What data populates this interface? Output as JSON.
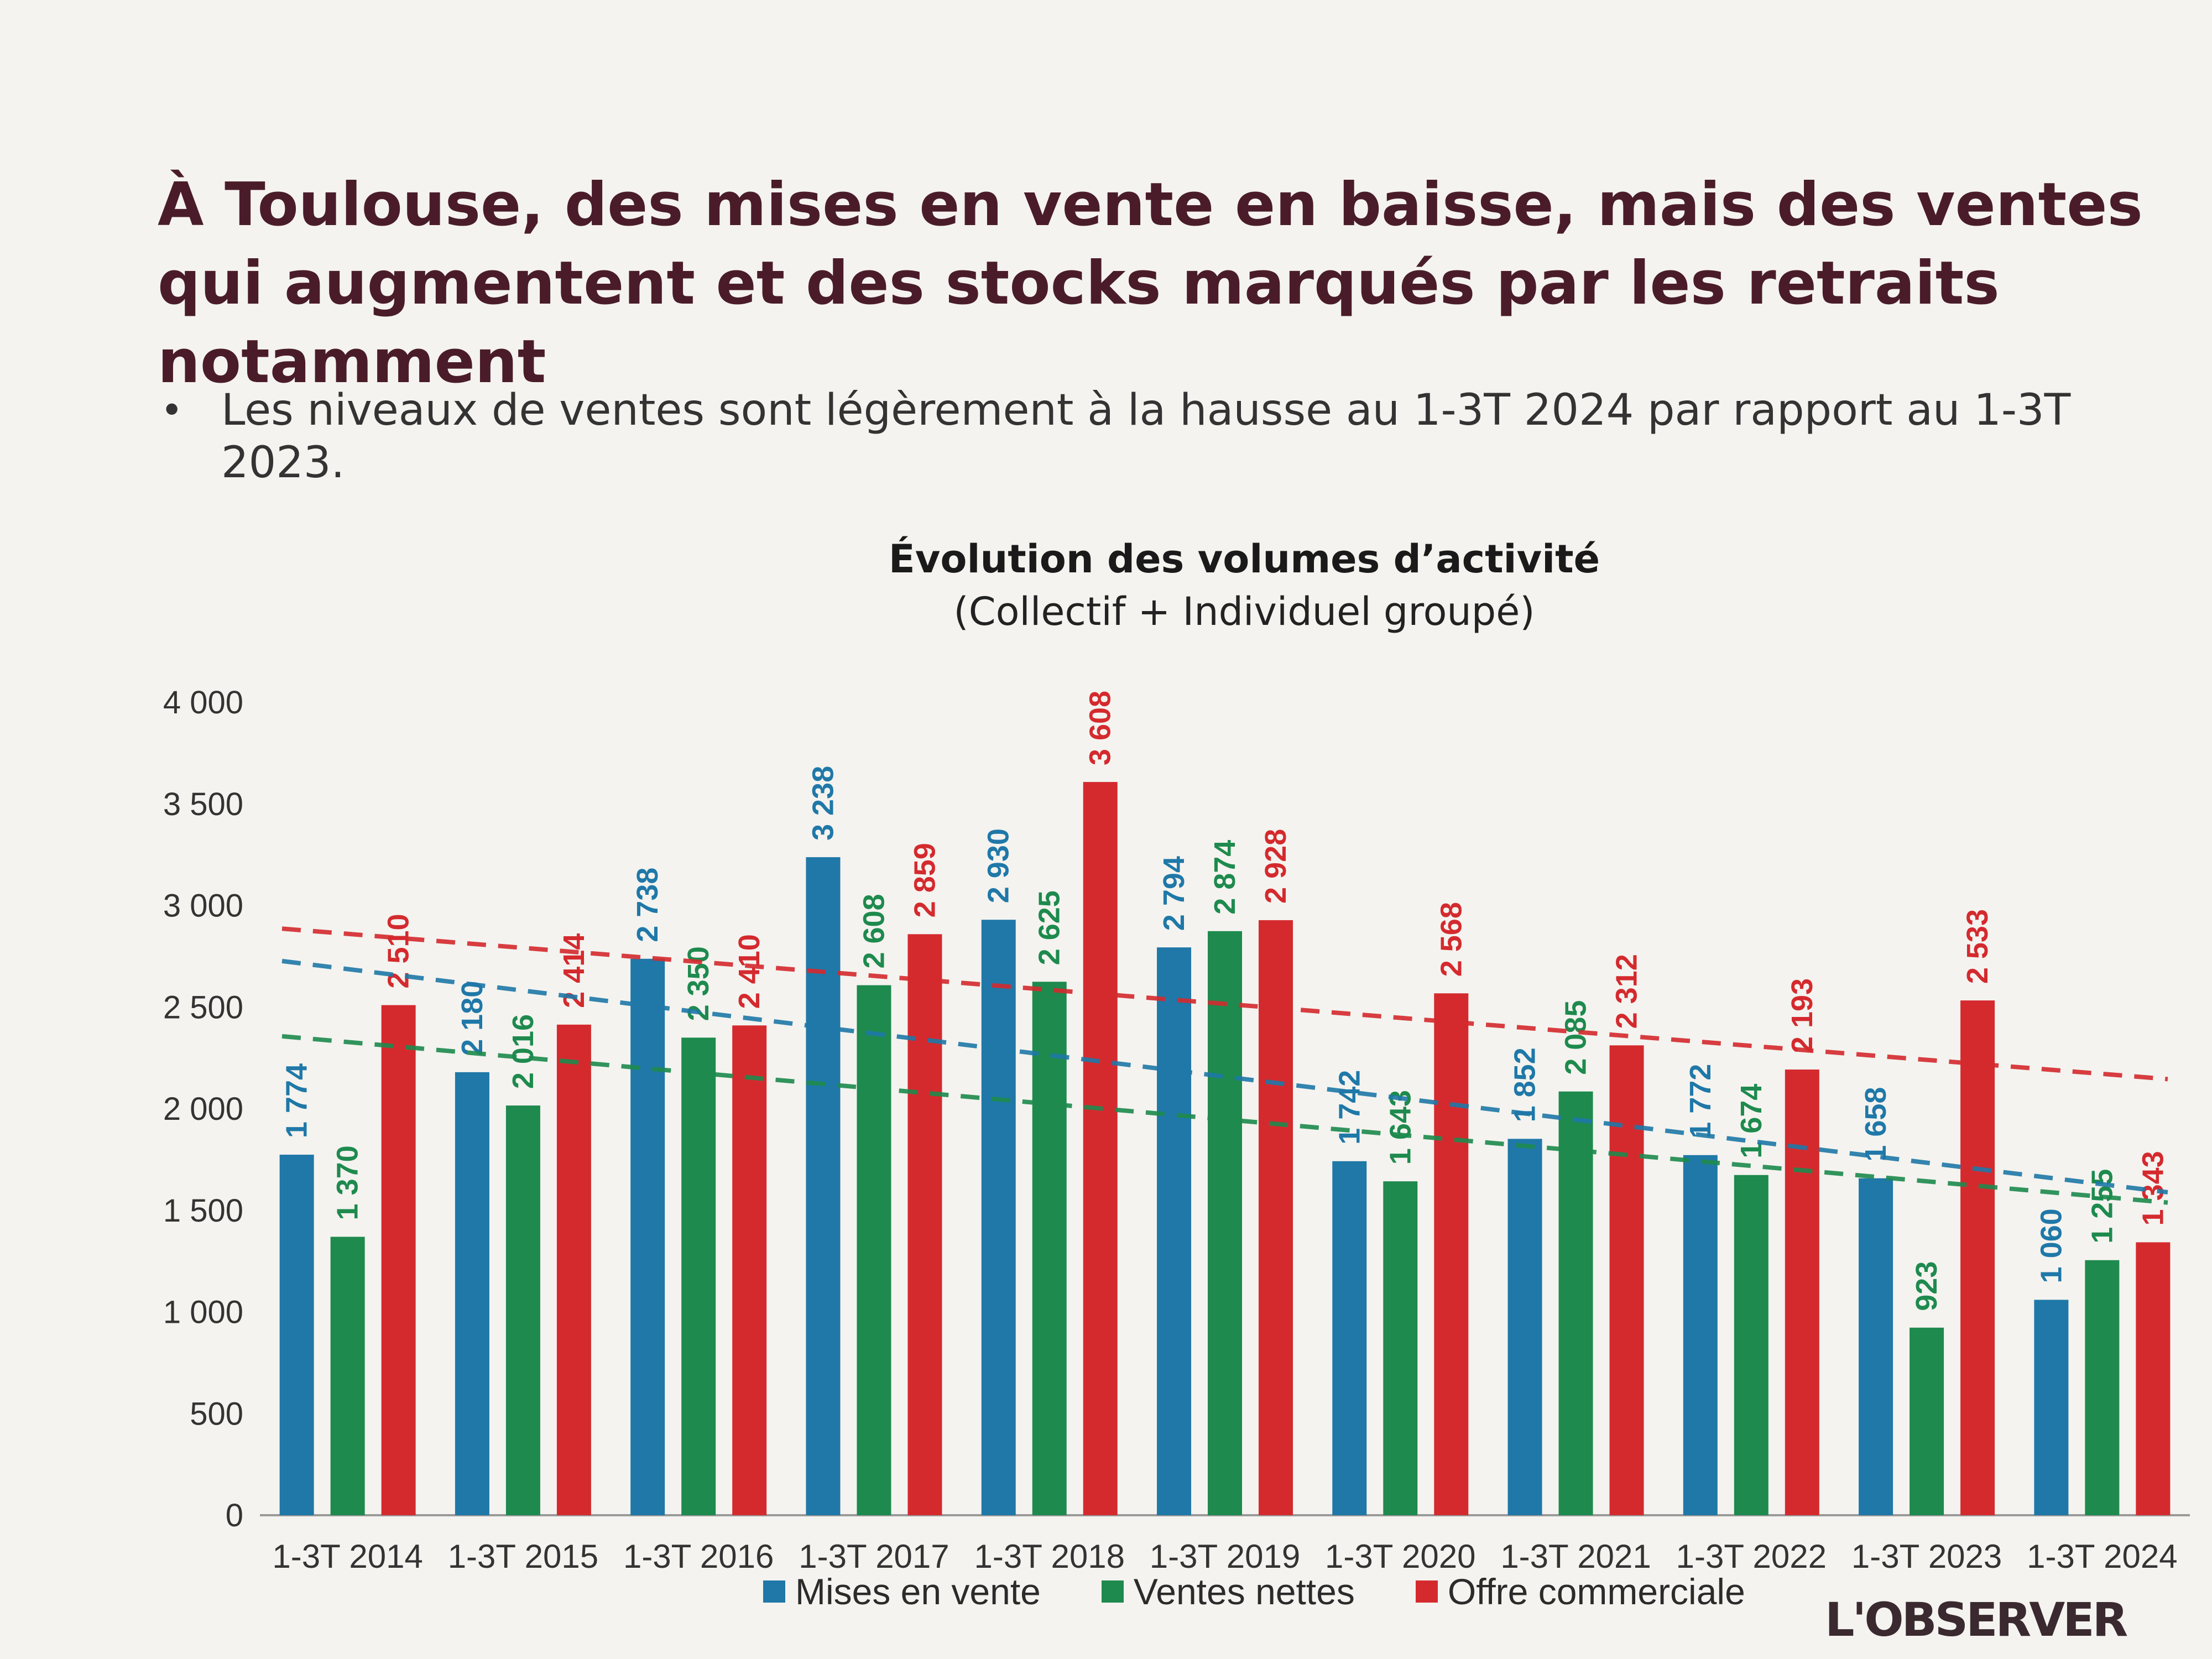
{
  "slide": {
    "title": "À Toulouse, des mises en vente en baisse, mais des ventes qui augmentent et des stocks marqués par les retraits notamment",
    "bullet": "Les niveaux de ventes sont légèrement à la hausse au 1-3T 2024 par rapport au 1-3T 2023.",
    "logo_text": "L'OBSERVER"
  },
  "colors": {
    "mises": "#1f78a8",
    "ventes": "#1e8a4e",
    "offre": "#d42a2e",
    "axis_text": "#333333"
  },
  "chart_data": {
    "type": "bar",
    "title": "Évolution des volumes d’activité",
    "subtitle": "(Collectif + Individuel groupé)",
    "categories": [
      "1-3T 2014",
      "1-3T 2015",
      "1-3T 2016",
      "1-3T 2017",
      "1-3T 2018",
      "1-3T 2019",
      "1-3T 2020",
      "1-3T 2021",
      "1-3T 2022",
      "1-3T 2023",
      "1-3T 2024"
    ],
    "series": [
      {
        "name": "Mises en vente",
        "color": "#1f78a8",
        "values": [
          1774,
          2180,
          2738,
          3238,
          2930,
          2794,
          1742,
          1852,
          1772,
          1658,
          1060
        ],
        "labels": [
          "1 774",
          "2 180",
          "2 738",
          "3 238",
          "2 930",
          "2 794",
          "1 742",
          "1 852",
          "1 772",
          "1 658",
          "1 060"
        ]
      },
      {
        "name": "Ventes nettes",
        "color": "#1e8a4e",
        "values": [
          1370,
          2016,
          2350,
          2608,
          2625,
          2874,
          1643,
          2085,
          1674,
          923,
          1255
        ],
        "labels": [
          "1 370",
          "2 016",
          "2 350",
          "2 608",
          "2 625",
          "2 874",
          "1 643",
          "2 085",
          "1 674",
          "923",
          "1 255"
        ]
      },
      {
        "name": "Offre commerciale",
        "color": "#d42a2e",
        "values": [
          2510,
          2414,
          2410,
          2859,
          3608,
          2928,
          2568,
          2312,
          2193,
          2533,
          1343
        ],
        "labels": [
          "2 510",
          "2 414",
          "2 410",
          "2 859",
          "3 608",
          "2 928",
          "2 568",
          "2 312",
          "2 193",
          "2 533",
          "1 343"
        ]
      }
    ],
    "yticks": [
      0,
      500,
      1000,
      1500,
      2000,
      2500,
      3000,
      3500,
      4000
    ],
    "ytick_labels": [
      "0",
      "500",
      "1 000",
      "1 500",
      "2 000",
      "2 500",
      "3 000",
      "3 500",
      "4 000"
    ],
    "ylim": [
      0,
      4000
    ],
    "grid": false,
    "legend_position": "bottom",
    "trendlines": "dashed, one per series"
  }
}
